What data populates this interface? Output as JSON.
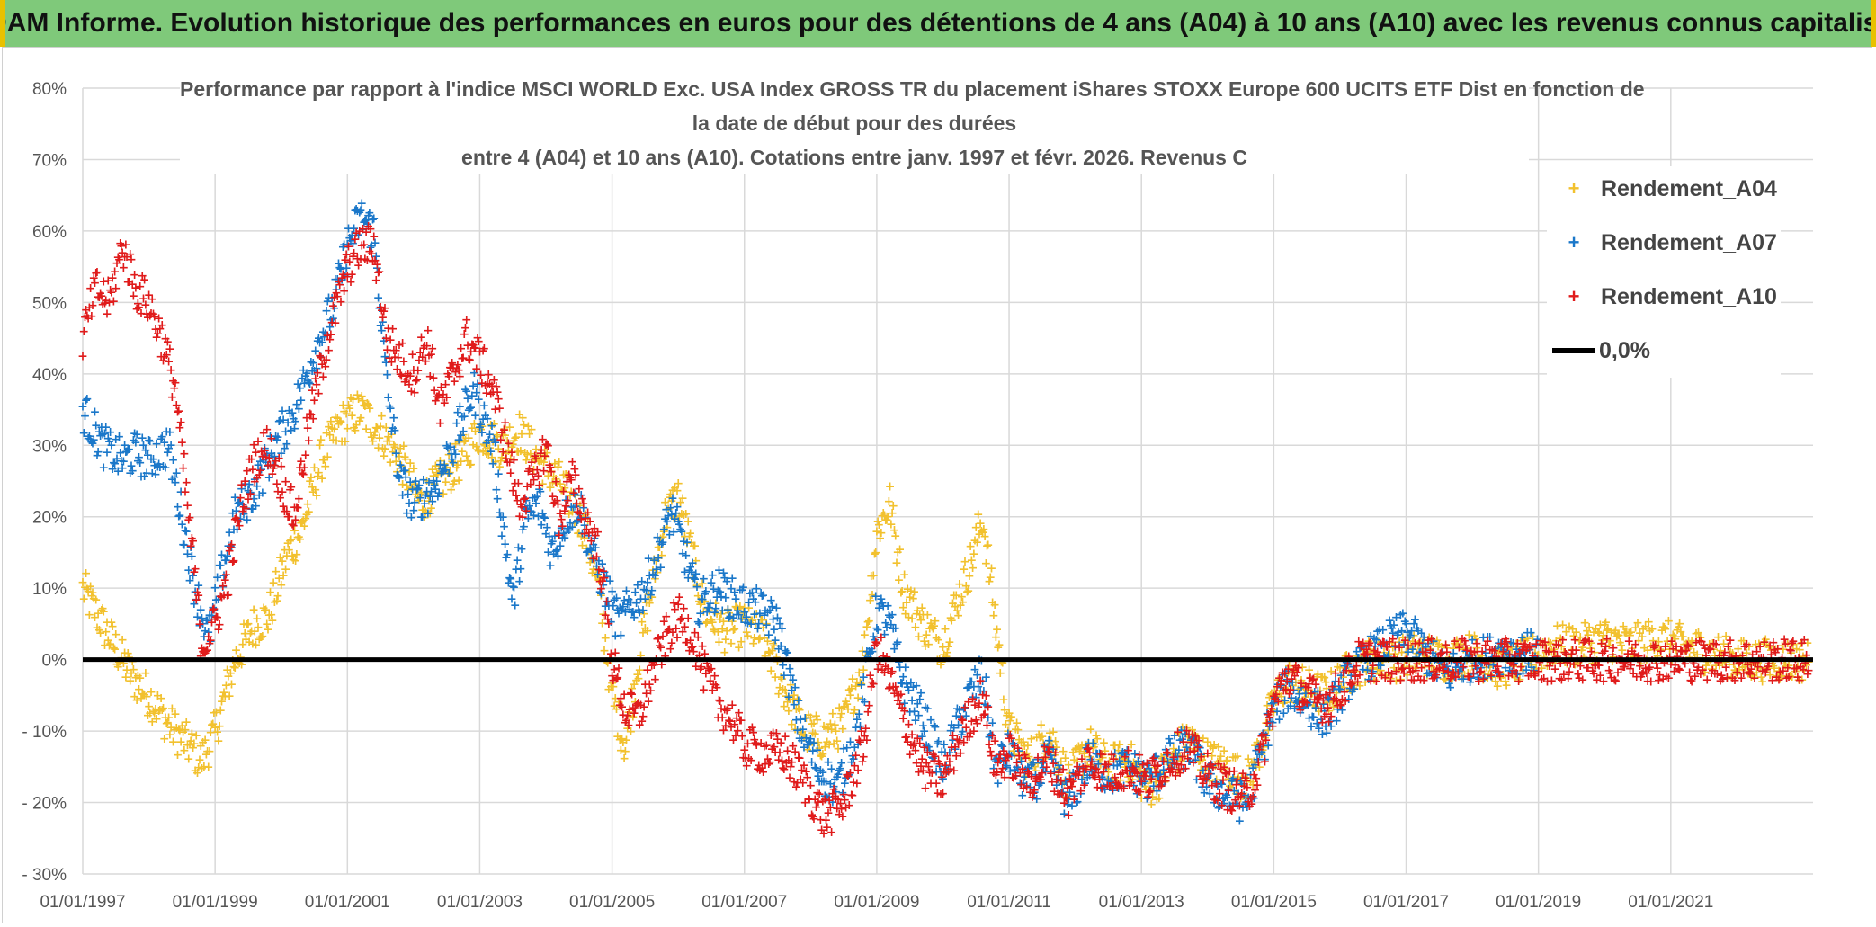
{
  "banner": "ADAM Informe. Evolution historique des performances en euros pour des détentions de 4 ans (A04) à 10 ans (A10) avec les revenus connus capitalisés",
  "chart_data": {
    "type": "scatter",
    "title_lines": [
      "Performance par rapport à l'indice MSCI WORLD Exc. USA Index GROSS TR  du placement iShares STOXX Europe 600 UCITS ETF Dist en fonction de",
      "la date de début pour des durées",
      "entre 4 (A04) et 10 ans (A10). Cotations entre janv. 1997 et févr. 2026. Revenus C"
    ],
    "xlabel": "",
    "ylabel": "",
    "x_range": [
      1997.0,
      2023.15
    ],
    "x_ticks": [
      "01/01/1997",
      "01/01/1999",
      "01/01/2001",
      "01/01/2003",
      "01/01/2005",
      "01/01/2007",
      "01/01/2009",
      "01/01/2011",
      "01/01/2013",
      "01/01/2015",
      "01/01/2017",
      "01/01/2019",
      "01/01/2021"
    ],
    "y_range": [
      -30,
      80
    ],
    "y_ticks": [
      "80%",
      "70%",
      "60%",
      "50%",
      "40%",
      "30%",
      "20%",
      "10%",
      "0%",
      "- 10%",
      "- 20%",
      "- 30%"
    ],
    "y_tick_values": [
      80,
      70,
      60,
      50,
      40,
      30,
      20,
      10,
      0,
      -10,
      -20,
      -30
    ],
    "grid": true,
    "legend_position": "top-right",
    "reference_line": {
      "label": "0,0%",
      "value": 0,
      "color": "#000000"
    },
    "series": [
      {
        "name": "Rendement_A04",
        "color": "#f2c12e",
        "points": [
          [
            1997.0,
            10
          ],
          [
            1997.3,
            5
          ],
          [
            1997.6,
            0
          ],
          [
            1997.8,
            -3
          ],
          [
            1998.0,
            -5
          ],
          [
            1998.3,
            -9
          ],
          [
            1998.6,
            -12
          ],
          [
            1998.8,
            -14
          ],
          [
            1999.0,
            -10
          ],
          [
            1999.3,
            0
          ],
          [
            1999.6,
            5
          ],
          [
            1999.8,
            6
          ],
          [
            2000.1,
            15
          ],
          [
            2000.3,
            18
          ],
          [
            2000.6,
            28
          ],
          [
            2000.9,
            33
          ],
          [
            2001.2,
            35
          ],
          [
            2001.5,
            32
          ],
          [
            2001.8,
            28
          ],
          [
            2002.1,
            22
          ],
          [
            2002.4,
            25
          ],
          [
            2002.7,
            28
          ],
          [
            2003.0,
            32
          ],
          [
            2003.3,
            30
          ],
          [
            2003.6,
            32
          ],
          [
            2003.9,
            28
          ],
          [
            2004.2,
            25
          ],
          [
            2004.4,
            22
          ],
          [
            2004.6,
            18
          ],
          [
            2004.8,
            10
          ],
          [
            2005.0,
            -5
          ],
          [
            2005.2,
            -12
          ],
          [
            2005.4,
            0
          ],
          [
            2005.6,
            10
          ],
          [
            2005.8,
            20
          ],
          [
            2006.0,
            23
          ],
          [
            2006.2,
            15
          ],
          [
            2006.4,
            7
          ],
          [
            2006.7,
            4
          ],
          [
            2007.0,
            5
          ],
          [
            2007.3,
            3
          ],
          [
            2007.6,
            -4
          ],
          [
            2007.9,
            -10
          ],
          [
            2008.2,
            -11
          ],
          [
            2008.5,
            -9
          ],
          [
            2008.8,
            0
          ],
          [
            2009.0,
            18
          ],
          [
            2009.2,
            22
          ],
          [
            2009.4,
            10
          ],
          [
            2009.7,
            5
          ],
          [
            2010.0,
            2
          ],
          [
            2010.2,
            8
          ],
          [
            2010.4,
            13
          ],
          [
            2010.6,
            20
          ],
          [
            2010.8,
            5
          ],
          [
            2011.0,
            -10
          ],
          [
            2011.3,
            -14
          ],
          [
            2011.6,
            -10
          ],
          [
            2011.9,
            -17
          ],
          [
            2012.2,
            -12
          ],
          [
            2012.5,
            -15
          ],
          [
            2012.8,
            -14
          ],
          [
            2013.1,
            -18
          ],
          [
            2013.4,
            -15
          ],
          [
            2013.7,
            -11
          ],
          [
            2014.0,
            -14
          ],
          [
            2014.3,
            -15
          ],
          [
            2014.6,
            -17
          ],
          [
            2014.8,
            -12
          ],
          [
            2015.0,
            -6
          ],
          [
            2015.2,
            -3
          ],
          [
            2015.5,
            -4
          ],
          [
            2015.8,
            -5
          ],
          [
            2016.1,
            -2
          ],
          [
            2016.4,
            0
          ],
          [
            2016.8,
            0
          ],
          [
            2017.2,
            1
          ],
          [
            2017.6,
            0
          ],
          [
            2018.0,
            1
          ],
          [
            2018.4,
            -1
          ],
          [
            2018.8,
            0
          ],
          [
            2019.2,
            2
          ],
          [
            2019.6,
            2
          ],
          [
            2020.0,
            3
          ],
          [
            2020.4,
            2
          ],
          [
            2020.8,
            3
          ],
          [
            2021.2,
            2
          ],
          [
            2021.6,
            1
          ],
          [
            2022.0,
            0
          ],
          [
            2022.4,
            0
          ],
          [
            2022.8,
            0
          ],
          [
            2023.1,
            0
          ]
        ]
      },
      {
        "name": "Rendement_A07",
        "color": "#1a77c9",
        "points": [
          [
            1997.0,
            35
          ],
          [
            1997.3,
            30
          ],
          [
            1997.6,
            28
          ],
          [
            1997.8,
            29
          ],
          [
            1998.0,
            28
          ],
          [
            1998.3,
            30
          ],
          [
            1998.5,
            20
          ],
          [
            1998.7,
            10
          ],
          [
            1998.9,
            3
          ],
          [
            1999.1,
            12
          ],
          [
            1999.3,
            20
          ],
          [
            1999.6,
            24
          ],
          [
            1999.9,
            30
          ],
          [
            2000.2,
            35
          ],
          [
            2000.5,
            43
          ],
          [
            2000.8,
            50
          ],
          [
            2001.0,
            58
          ],
          [
            2001.2,
            62
          ],
          [
            2001.4,
            60
          ],
          [
            2001.6,
            38
          ],
          [
            2001.8,
            25
          ],
          [
            2002.0,
            22
          ],
          [
            2002.3,
            24
          ],
          [
            2002.6,
            30
          ],
          [
            2002.9,
            38
          ],
          [
            2003.2,
            30
          ],
          [
            2003.5,
            8
          ],
          [
            2003.7,
            20
          ],
          [
            2003.9,
            22
          ],
          [
            2004.1,
            15
          ],
          [
            2004.3,
            20
          ],
          [
            2004.5,
            22
          ],
          [
            2004.7,
            15
          ],
          [
            2004.9,
            10
          ],
          [
            2005.1,
            5
          ],
          [
            2005.3,
            8
          ],
          [
            2005.5,
            10
          ],
          [
            2005.7,
            15
          ],
          [
            2005.9,
            21
          ],
          [
            2006.1,
            15
          ],
          [
            2006.3,
            8
          ],
          [
            2006.6,
            10
          ],
          [
            2006.9,
            8
          ],
          [
            2007.2,
            7
          ],
          [
            2007.5,
            5
          ],
          [
            2007.8,
            -8
          ],
          [
            2008.1,
            -15
          ],
          [
            2008.4,
            -18
          ],
          [
            2008.7,
            -10
          ],
          [
            2009.0,
            7
          ],
          [
            2009.2,
            5
          ],
          [
            2009.4,
            -3
          ],
          [
            2009.7,
            -8
          ],
          [
            2010.0,
            -15
          ],
          [
            2010.2,
            -10
          ],
          [
            2010.4,
            -5
          ],
          [
            2010.6,
            -2
          ],
          [
            2010.8,
            -15
          ],
          [
            2011.0,
            -13
          ],
          [
            2011.3,
            -18
          ],
          [
            2011.6,
            -14
          ],
          [
            2011.9,
            -20
          ],
          [
            2012.2,
            -14
          ],
          [
            2012.5,
            -16
          ],
          [
            2012.8,
            -15
          ],
          [
            2013.1,
            -17
          ],
          [
            2013.4,
            -14
          ],
          [
            2013.7,
            -12
          ],
          [
            2014.0,
            -17
          ],
          [
            2014.3,
            -19
          ],
          [
            2014.6,
            -20
          ],
          [
            2014.8,
            -13
          ],
          [
            2015.0,
            -7
          ],
          [
            2015.2,
            -4
          ],
          [
            2015.5,
            -6
          ],
          [
            2015.8,
            -8
          ],
          [
            2016.1,
            -3
          ],
          [
            2016.4,
            0
          ],
          [
            2016.8,
            3
          ],
          [
            2017.0,
            4
          ],
          [
            2017.3,
            1
          ],
          [
            2017.6,
            -2
          ],
          [
            2018.0,
            0
          ],
          [
            2018.4,
            1
          ],
          [
            2018.8,
            1
          ],
          [
            2019.0,
            1
          ]
        ]
      },
      {
        "name": "Rendement_A10",
        "color": "#e01b1b",
        "points": [
          [
            1997.0,
            45
          ],
          [
            1997.2,
            52
          ],
          [
            1997.4,
            50
          ],
          [
            1997.6,
            58
          ],
          [
            1997.8,
            52
          ],
          [
            1998.0,
            50
          ],
          [
            1998.2,
            45
          ],
          [
            1998.4,
            38
          ],
          [
            1998.6,
            20
          ],
          [
            1998.8,
            2
          ],
          [
            1999.0,
            5
          ],
          [
            1999.2,
            12
          ],
          [
            1999.4,
            22
          ],
          [
            1999.6,
            28
          ],
          [
            1999.8,
            30
          ],
          [
            2000.0,
            25
          ],
          [
            2000.2,
            20
          ],
          [
            2000.4,
            32
          ],
          [
            2000.7,
            45
          ],
          [
            2001.0,
            55
          ],
          [
            2001.2,
            58
          ],
          [
            2001.4,
            58
          ],
          [
            2001.6,
            45
          ],
          [
            2001.8,
            42
          ],
          [
            2002.0,
            40
          ],
          [
            2002.2,
            45
          ],
          [
            2002.4,
            35
          ],
          [
            2002.6,
            40
          ],
          [
            2002.8,
            45
          ],
          [
            2003.0,
            42
          ],
          [
            2003.2,
            38
          ],
          [
            2003.4,
            30
          ],
          [
            2003.6,
            22
          ],
          [
            2003.8,
            25
          ],
          [
            2004.0,
            30
          ],
          [
            2004.2,
            20
          ],
          [
            2004.4,
            25
          ],
          [
            2004.6,
            20
          ],
          [
            2004.8,
            15
          ],
          [
            2005.0,
            0
          ],
          [
            2005.2,
            -7
          ],
          [
            2005.4,
            -8
          ],
          [
            2005.6,
            -2
          ],
          [
            2005.8,
            3
          ],
          [
            2006.0,
            6
          ],
          [
            2006.2,
            4
          ],
          [
            2006.4,
            -2
          ],
          [
            2006.6,
            -6
          ],
          [
            2006.8,
            -8
          ],
          [
            2007.0,
            -12
          ],
          [
            2007.3,
            -13
          ],
          [
            2007.6,
            -13
          ],
          [
            2007.9,
            -17
          ],
          [
            2008.2,
            -22
          ],
          [
            2008.5,
            -20
          ],
          [
            2008.8,
            -12
          ],
          [
            2009.0,
            2
          ],
          [
            2009.2,
            -3
          ],
          [
            2009.4,
            -8
          ],
          [
            2009.7,
            -15
          ],
          [
            2010.0,
            -17
          ],
          [
            2010.2,
            -12
          ],
          [
            2010.4,
            -8
          ],
          [
            2010.6,
            -5
          ],
          [
            2010.8,
            -15
          ],
          [
            2011.0,
            -13
          ],
          [
            2011.3,
            -17
          ],
          [
            2011.6,
            -14
          ],
          [
            2011.9,
            -19
          ],
          [
            2012.2,
            -14
          ],
          [
            2012.5,
            -16
          ],
          [
            2012.8,
            -15
          ],
          [
            2013.1,
            -17
          ],
          [
            2013.4,
            -14
          ],
          [
            2013.7,
            -12
          ],
          [
            2014.0,
            -16
          ],
          [
            2014.3,
            -18
          ],
          [
            2014.6,
            -19
          ],
          [
            2014.8,
            -14
          ],
          [
            2015.0,
            -6
          ],
          [
            2015.2,
            -2
          ],
          [
            2015.5,
            -5
          ],
          [
            2015.8,
            -6
          ],
          [
            2016.0,
            -4
          ],
          [
            2016.3,
            0
          ],
          [
            2016.8,
            0
          ],
          [
            2017.5,
            0
          ],
          [
            2018.5,
            0
          ],
          [
            2019.5,
            0
          ],
          [
            2020.5,
            0
          ],
          [
            2021.5,
            0
          ],
          [
            2022.5,
            0
          ],
          [
            2023.1,
            0
          ]
        ]
      }
    ]
  }
}
